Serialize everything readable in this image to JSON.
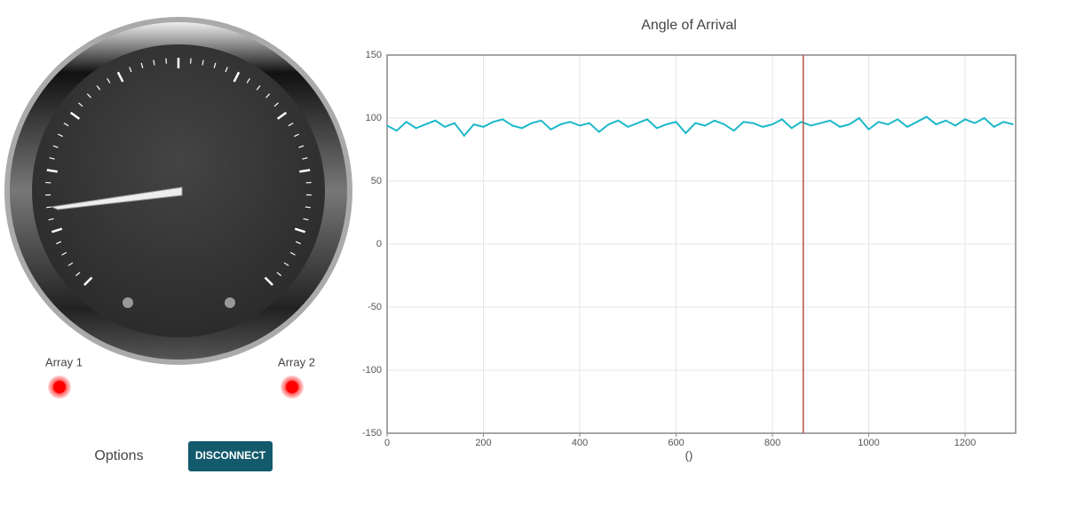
{
  "chart_data": {
    "type": "line",
    "title": "Angle of Arrival",
    "x_label": "()",
    "x": [
      0,
      20,
      40,
      60,
      80,
      100,
      120,
      140,
      160,
      180,
      200,
      220,
      240,
      260,
      280,
      300,
      320,
      340,
      360,
      380,
      400,
      420,
      440,
      460,
      480,
      500,
      520,
      540,
      560,
      580,
      600,
      620,
      640,
      660,
      680,
      700,
      720,
      740,
      760,
      780,
      800,
      820,
      840,
      860,
      880,
      900,
      920,
      940,
      960,
      980,
      1000,
      1020,
      1040,
      1060,
      1080,
      1100,
      1120,
      1140,
      1160,
      1180,
      1200,
      1220,
      1240,
      1260,
      1280,
      1300
    ],
    "values": [
      94,
      90,
      97,
      92,
      95,
      98,
      93,
      96,
      86,
      95,
      93,
      97,
      99,
      94,
      92,
      96,
      98,
      91,
      95,
      97,
      94,
      96,
      89,
      95,
      98,
      93,
      96,
      99,
      92,
      95,
      97,
      88,
      96,
      94,
      98,
      95,
      90,
      97,
      96,
      93,
      95,
      99,
      92,
      97,
      94,
      96,
      98,
      93,
      95,
      100,
      91,
      97,
      95,
      99,
      93,
      97,
      101,
      95,
      98,
      94,
      99,
      96,
      100,
      93,
      97,
      95
    ],
    "color": "#1cb8c9",
    "marker_x": 864,
    "marker_color": "#b5524a",
    "xlim": [
      0,
      1305
    ],
    "ylim": [
      -150,
      150
    ],
    "xticks": [
      0,
      200,
      400,
      600,
      800,
      1000,
      1200
    ],
    "yticks": [
      -150,
      -100,
      -50,
      0,
      50,
      100,
      150
    ],
    "grid": true
  },
  "gauge": {
    "labels": [
      "Array 1",
      "Array 2"
    ]
  },
  "controls": {
    "options": "Options",
    "button": "DISCONNECT"
  }
}
